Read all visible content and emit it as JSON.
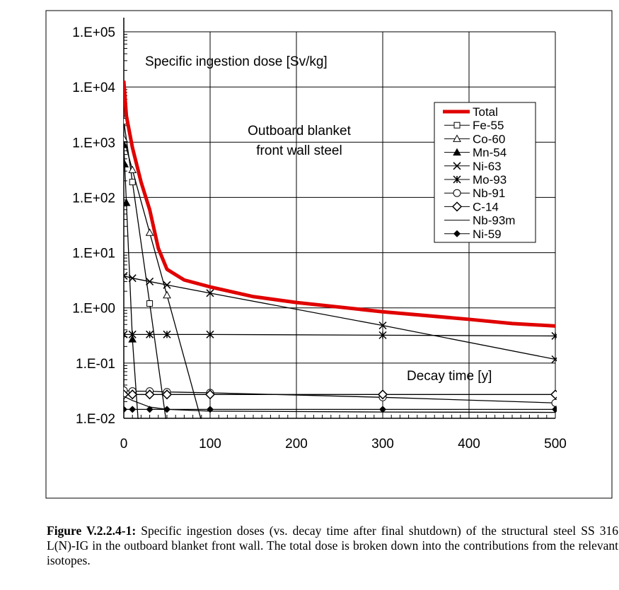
{
  "chart_data": {
    "type": "line",
    "title": "Specific ingestion dose [Sv/kg]",
    "annotation": "Outboard blanket front wall steel",
    "annotation_lines": [
      "Outboard blanket",
      "front wall steel"
    ],
    "xlabel": "Decay time [y]",
    "ylabel": "Specific ingestion dose [Sv/kg]",
    "xlim": [
      0,
      500
    ],
    "ylim": [
      0.01,
      100000
    ],
    "yscale": "log",
    "grid": true,
    "legend_position": "right",
    "x_ticks": [
      "0",
      "100",
      "200",
      "300",
      "400",
      "500"
    ],
    "y_ticks": [
      "1.E-02",
      "1.E-01",
      "1.E+00",
      "1.E+01",
      "1.E+02",
      "1.E+03",
      "1.E+04",
      "1.E+05"
    ],
    "series": [
      {
        "name": "Total",
        "marker": "none",
        "color": "#e00000",
        "x": [
          0,
          3,
          10,
          20,
          30,
          40,
          50,
          70,
          100,
          150,
          200,
          300,
          400,
          450,
          500
        ],
        "values": [
          13000,
          3000,
          800,
          190,
          60,
          12,
          5,
          3.2,
          2.4,
          1.6,
          1.25,
          0.85,
          0.62,
          0.52,
          0.47
        ]
      },
      {
        "name": "Fe-55",
        "marker": "square-open",
        "color": "#000000",
        "x": [
          0,
          10,
          30,
          50
        ],
        "values": [
          2400,
          190,
          1.2,
          0.007
        ]
      },
      {
        "name": "Co-60",
        "marker": "triangle-open",
        "color": "#000000",
        "x": [
          0,
          10,
          30,
          50,
          100
        ],
        "values": [
          1150,
          315,
          23,
          1.7,
          0.0024
        ]
      },
      {
        "name": "Mn-54",
        "marker": "triangle-filled",
        "color": "#000000",
        "x": [
          0,
          1,
          3,
          10,
          30
        ],
        "values": [
          900,
          400,
          80,
          0.27,
          1e-05
        ]
      },
      {
        "name": "Ni-63",
        "marker": "x",
        "color": "#000000",
        "x": [
          0,
          10,
          30,
          50,
          100,
          300,
          500
        ],
        "values": [
          3.8,
          3.45,
          3.0,
          2.6,
          1.85,
          0.48,
          0.117
        ]
      },
      {
        "name": "Mo-93",
        "marker": "star",
        "color": "#000000",
        "x": [
          0,
          10,
          30,
          50,
          100,
          300,
          500
        ],
        "values": [
          0.33,
          0.33,
          0.33,
          0.33,
          0.33,
          0.32,
          0.31
        ]
      },
      {
        "name": "Nb-91",
        "marker": "circle-open",
        "color": "#000000",
        "x": [
          0,
          10,
          30,
          50,
          100,
          300,
          500
        ],
        "values": [
          0.032,
          0.031,
          0.031,
          0.03,
          0.029,
          0.024,
          0.019
        ]
      },
      {
        "name": "C-14",
        "marker": "diamond-open",
        "color": "#000000",
        "x": [
          0,
          10,
          30,
          50,
          100,
          300,
          500
        ],
        "values": [
          0.027,
          0.027,
          0.027,
          0.027,
          0.027,
          0.027,
          0.027
        ]
      },
      {
        "name": "Nb-93m",
        "marker": "none",
        "color": "#000000",
        "x": [
          0,
          10,
          30,
          50,
          100,
          300,
          500
        ],
        "values": [
          0.025,
          0.021,
          0.016,
          0.0145,
          0.0135,
          0.013,
          0.0128
        ]
      },
      {
        "name": "Ni-59",
        "marker": "diamond-filled",
        "color": "#000000",
        "x": [
          0,
          10,
          30,
          50,
          100,
          300,
          500
        ],
        "values": [
          0.0145,
          0.0145,
          0.0145,
          0.0145,
          0.0145,
          0.0145,
          0.0145
        ]
      }
    ]
  },
  "caption": {
    "label": "Figure V.2.2.4-1:",
    "text": " Specific ingestion doses (vs. decay time after final shutdown) of the structural steel SS 316 L(N)-IG in the outboard blanket front wall. The total dose is broken down into the contributions from the relevant isotopes."
  }
}
